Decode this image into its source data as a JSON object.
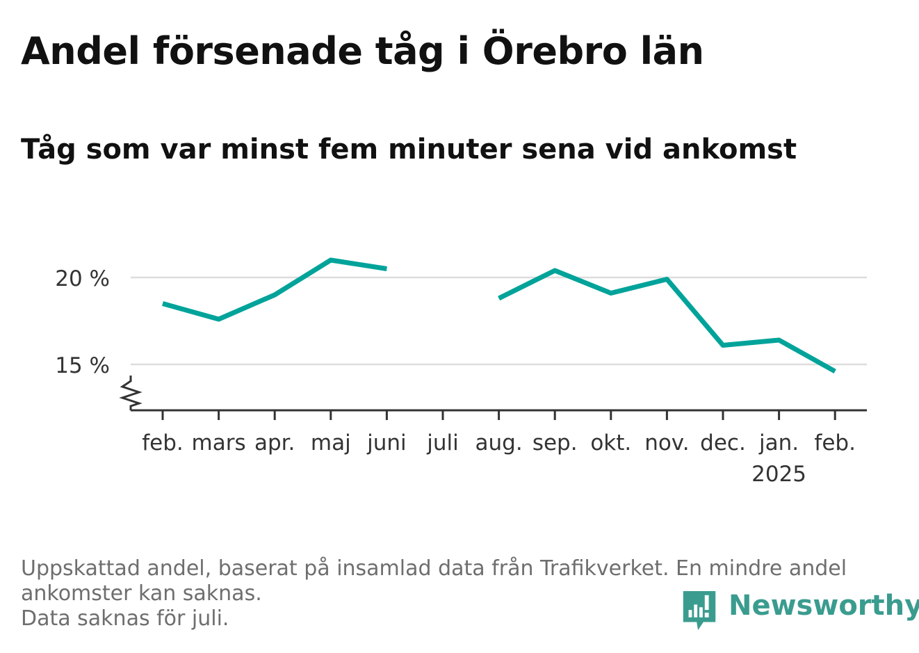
{
  "title": "Andel försenade tåg i Örebro län",
  "subtitle": "Tåg som var minst fem minuter sena vid ankomst",
  "footnote": {
    "line1": "Uppskattad andel, baserat på insamlad data från Trafikverket. En mindre andel",
    "line2": "ankomster kan saknas.",
    "line3": "Data saknas för juli."
  },
  "brand": {
    "name": "Newsworthy",
    "color": "#3a9c8f",
    "icon": "newsworthy-logo-icon"
  },
  "colors": {
    "line": "#00a39a",
    "grid": "#dddddd",
    "axis": "#333333",
    "text": "#333333"
  },
  "chart_data": {
    "type": "line",
    "title": "Andel försenade tåg i Örebro län",
    "subtitle": "Tåg som var minst fem minuter sena vid ankomst",
    "categories": [
      "feb.",
      "mars",
      "apr.",
      "maj",
      "juni",
      "juli",
      "aug.",
      "sep.",
      "okt.",
      "nov.",
      "dec.",
      "jan.",
      "feb."
    ],
    "year_label": {
      "text": "2025",
      "under": 11
    },
    "series": [
      {
        "values": [
          18.5,
          17.6,
          19.0,
          21.0,
          20.5,
          null,
          18.8,
          20.4,
          19.1,
          19.9,
          16.1,
          16.4,
          14.6
        ]
      }
    ],
    "y_ticks": [
      {
        "value": 15,
        "label": "15 %"
      },
      {
        "value": 20,
        "label": "20 %"
      }
    ],
    "ylim": [
      12.4,
      23.0
    ],
    "y_axis_broken": true,
    "grid": true,
    "xlabel": "",
    "ylabel": ""
  }
}
